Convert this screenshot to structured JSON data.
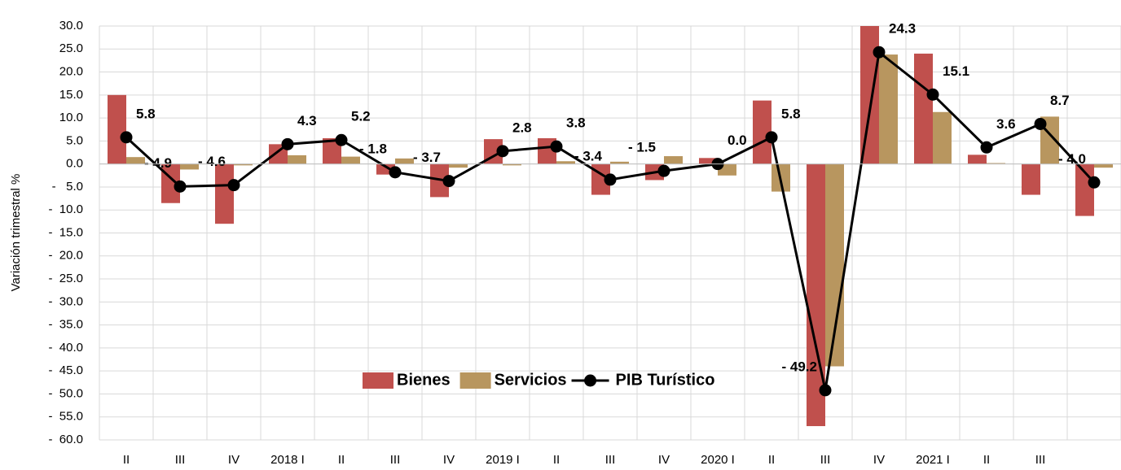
{
  "chart_data": {
    "type": "bar_line",
    "y_label": "Variación trimestral %",
    "categories": [
      "II",
      "III",
      "IV",
      "2018 I",
      "II",
      "III",
      "IV",
      "2019 I",
      "II",
      "III",
      "IV",
      "2020 I",
      "II",
      "III",
      "IV",
      "2021 I",
      "II",
      "III",
      null
    ],
    "series": [
      {
        "name": "Bienes",
        "kind": "bar",
        "color": "#c0504d",
        "values": [
          15.0,
          -8.5,
          -13.0,
          4.3,
          5.6,
          -2.3,
          -7.2,
          5.4,
          5.6,
          -6.7,
          -3.5,
          1.3,
          13.8,
          -57.0,
          30.0,
          24.0,
          2.0,
          -6.7,
          -11.3
        ]
      },
      {
        "name": "Servicios",
        "kind": "bar",
        "color": "#b8965f",
        "values": [
          1.5,
          -1.2,
          -0.3,
          1.9,
          1.6,
          1.2,
          -0.8,
          -0.3,
          0.6,
          0.5,
          1.7,
          -2.5,
          -6.0,
          -44.0,
          23.8,
          11.3,
          0.2,
          10.3,
          -0.8
        ]
      },
      {
        "name": "PIB Turístico",
        "kind": "line",
        "color": "#000000",
        "values": [
          5.8,
          -4.9,
          -4.6,
          4.3,
          5.2,
          -1.8,
          -3.7,
          2.8,
          3.8,
          -3.4,
          -1.5,
          0.0,
          5.8,
          -49.2,
          24.3,
          15.1,
          3.6,
          8.7,
          -4.0
        ],
        "value_labels": [
          "5.8",
          "- 4.9",
          "- 4.6",
          "4.3",
          "5.2",
          "- 1.8",
          "- 3.7",
          "2.8",
          "3.8",
          "- 3.4",
          "- 1.5",
          "0.0",
          "5.8",
          "- 49.2",
          "24.3",
          "15.1",
          "3.6",
          "8.7",
          "- 4.0"
        ]
      }
    ],
    "ylim": [
      -60,
      30
    ],
    "yticks": [
      {
        "value": 30,
        "label": "30.0"
      },
      {
        "value": 25,
        "label": "25.0"
      },
      {
        "value": 20,
        "label": "20.0"
      },
      {
        "value": 15,
        "label": "15.0"
      },
      {
        "value": 10,
        "label": "10.0"
      },
      {
        "value": 5,
        "label": "5.0"
      },
      {
        "value": 0,
        "label": "0.0"
      },
      {
        "value": -5,
        "label": "-   5.0"
      },
      {
        "value": -10,
        "label": "-  10.0"
      },
      {
        "value": -15,
        "label": "-  15.0"
      },
      {
        "value": -20,
        "label": "-  20.0"
      },
      {
        "value": -25,
        "label": "-  25.0"
      },
      {
        "value": -30,
        "label": "-  30.0"
      },
      {
        "value": -35,
        "label": "-  35.0"
      },
      {
        "value": -40,
        "label": "-  40.0"
      },
      {
        "value": -45,
        "label": "-  45.0"
      },
      {
        "value": -50,
        "label": "-  50.0"
      },
      {
        "value": -55,
        "label": "-  55.0"
      },
      {
        "value": -60,
        "label": "-  60.0"
      }
    ],
    "grid": true
  }
}
